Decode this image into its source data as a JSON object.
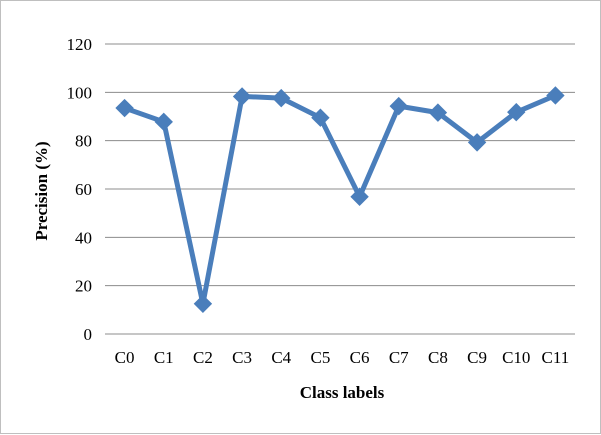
{
  "chart_data": {
    "type": "line",
    "title": "",
    "xlabel": "Class labels",
    "ylabel": "Precision (%)",
    "categories": [
      "C0",
      "C1",
      "C2",
      "C3",
      "C4",
      "C5",
      "C6",
      "C7",
      "C8",
      "C9",
      "C10",
      "C11"
    ],
    "series": [
      {
        "values": [
          93.5,
          87.8,
          12.5,
          98.3,
          97.6,
          89.5,
          56.8,
          94.3,
          91.6,
          79.3,
          91.8,
          98.7
        ],
        "color": "#4a7ebb",
        "marker": "diamond"
      }
    ],
    "ylim": [
      0,
      120
    ],
    "yticks": [
      0,
      20,
      40,
      60,
      80,
      100,
      120
    ],
    "grid": "horizontal",
    "legend": "none"
  }
}
